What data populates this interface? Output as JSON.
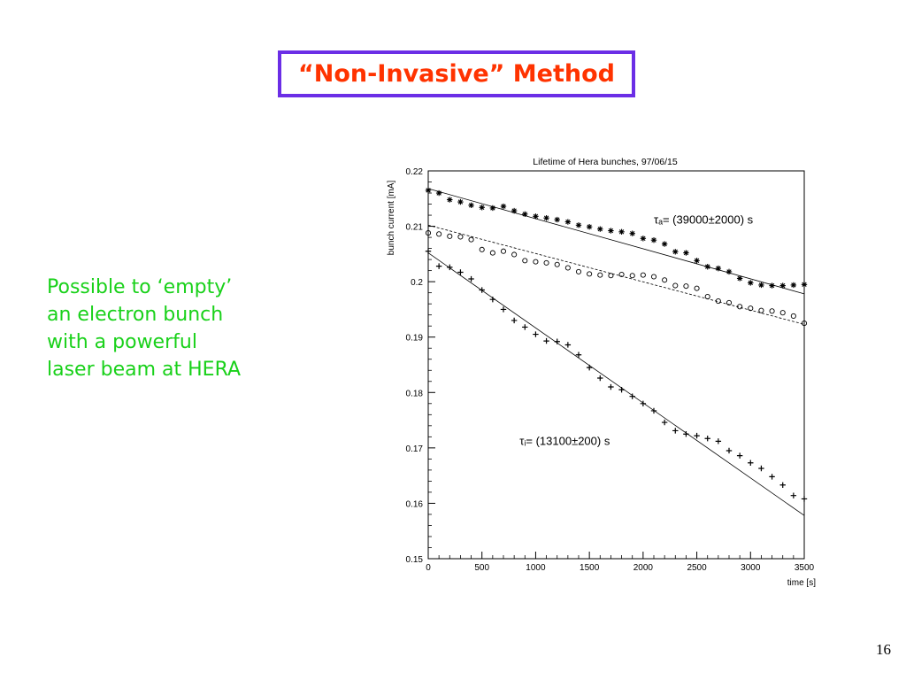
{
  "slide": {
    "title": "“Non-Invasive” Method",
    "caption_lines": [
      "Possible to ‘empty’",
      "an electron bunch",
      "with a powerful",
      "laser beam at HERA"
    ],
    "page_number": "16",
    "colors": {
      "title_text": "#ff3300",
      "title_border": "#6b2ee6",
      "caption_text": "#19d11a"
    }
  },
  "chart_data": {
    "type": "scatter",
    "title": "Lifetime of Hera bunches,   97/06/15",
    "xlabel": "time [s]",
    "ylabel": "bunch current [mA]",
    "xlim": [
      0,
      3500
    ],
    "ylim": [
      0.15,
      0.22
    ],
    "xticks": [
      0,
      500,
      1000,
      1500,
      2000,
      2500,
      3000,
      3500
    ],
    "xtick_labels": [
      "0",
      "500",
      "1000",
      "1500",
      "2000",
      "2500",
      "3000",
      "3500"
    ],
    "yticks": [
      0.15,
      0.16,
      0.17,
      0.18,
      0.19,
      0.2,
      0.21,
      0.22
    ],
    "ytick_labels": [
      "0.15",
      "0.16",
      "0.17",
      "0.18",
      "0.19",
      "0.2",
      "0.21",
      "0.22"
    ],
    "grid": false,
    "annotations": [
      {
        "text": "τₐ= (39000±2000) s",
        "x": 2100,
        "y": 0.2105
      },
      {
        "text": "τᵢ= (13100±200) s",
        "x": 850,
        "y": 0.1705
      }
    ],
    "series": [
      {
        "marker": "star",
        "x": [
          0,
          100,
          200,
          300,
          400,
          500,
          600,
          700,
          800,
          900,
          1000,
          1100,
          1200,
          1300,
          1400,
          1500,
          1600,
          1700,
          1800,
          1900,
          2000,
          2100,
          2200,
          2300,
          2400,
          2500,
          2600,
          2700,
          2800,
          2900,
          3000,
          3100,
          3200,
          3300,
          3400,
          3500
        ],
        "y": [
          0.2165,
          0.216,
          0.2148,
          0.2144,
          0.2138,
          0.2134,
          0.2133,
          0.2136,
          0.2128,
          0.2122,
          0.2118,
          0.2115,
          0.2112,
          0.2108,
          0.2102,
          0.2099,
          0.2095,
          0.2092,
          0.209,
          0.2087,
          0.2078,
          0.2075,
          0.2068,
          0.2054,
          0.2052,
          0.2038,
          0.2027,
          0.2024,
          0.2018,
          0.2006,
          0.1998,
          0.1994,
          0.1993,
          0.1993,
          0.1994,
          0.1995
        ]
      },
      {
        "marker": "circle",
        "x": [
          0,
          100,
          200,
          300,
          400,
          500,
          600,
          700,
          800,
          900,
          1000,
          1100,
          1200,
          1300,
          1400,
          1500,
          1600,
          1700,
          1800,
          1900,
          2000,
          2100,
          2200,
          2300,
          2400,
          2500,
          2600,
          2700,
          2800,
          2900,
          3000,
          3100,
          3200,
          3300,
          3400,
          3500
        ],
        "y": [
          0.2088,
          0.2086,
          0.2082,
          0.2081,
          0.2076,
          0.2058,
          0.2052,
          0.2055,
          0.2049,
          0.2038,
          0.2036,
          0.2034,
          0.2031,
          0.2025,
          0.2018,
          0.2014,
          0.2012,
          0.2011,
          0.2013,
          0.2011,
          0.2012,
          0.2009,
          0.2003,
          0.1993,
          0.1992,
          0.1988,
          0.1973,
          0.1965,
          0.1962,
          0.1955,
          0.1952,
          0.1948,
          0.1947,
          0.1944,
          0.1938,
          0.1925
        ]
      },
      {
        "marker": "cross",
        "x": [
          0,
          100,
          200,
          300,
          400,
          500,
          600,
          700,
          800,
          900,
          1000,
          1100,
          1200,
          1300,
          1400,
          1500,
          1600,
          1700,
          1800,
          1900,
          2000,
          2100,
          2200,
          2300,
          2400,
          2500,
          2600,
          2700,
          2800,
          2900,
          3000,
          3100,
          3200,
          3300,
          3400,
          3500
        ],
        "y": [
          0.2055,
          0.2028,
          0.2026,
          0.2017,
          0.2005,
          0.1985,
          0.1968,
          0.195,
          0.193,
          0.1918,
          0.1905,
          0.1893,
          0.1892,
          0.1886,
          0.1868,
          0.1845,
          0.1826,
          0.181,
          0.1805,
          0.1793,
          0.178,
          0.1767,
          0.1746,
          0.1731,
          0.1725,
          0.1722,
          0.1717,
          0.1712,
          0.1695,
          0.1686,
          0.1673,
          0.1663,
          0.1648,
          0.1633,
          0.1614,
          0.1608
        ]
      }
    ],
    "fit_lines": [
      {
        "x": [
          0,
          3500
        ],
        "y": [
          0.2168,
          0.1978
        ]
      },
      {
        "x": [
          0,
          3500
        ],
        "y": [
          0.2102,
          0.1923
        ]
      },
      {
        "x": [
          0,
          3500
        ],
        "y": [
          0.2052,
          0.1578
        ]
      }
    ]
  }
}
